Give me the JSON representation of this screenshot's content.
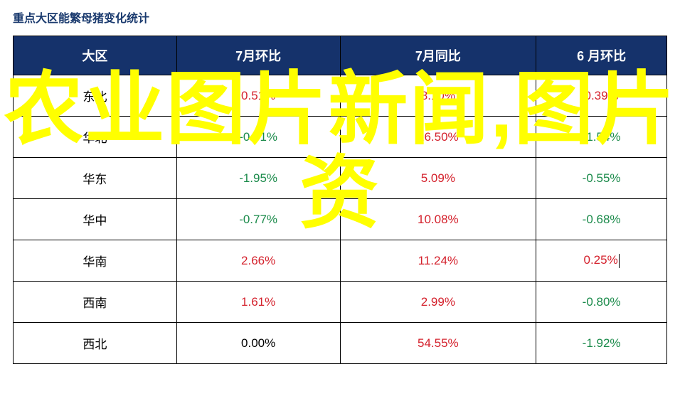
{
  "title": "重点大区能繁母猪变化统计",
  "colors": {
    "header_bg": "#15326b",
    "header_text": "#ffffff",
    "title_text": "#1a3a6e",
    "border": "#000000",
    "cell_bg": "#ffffff",
    "positive": "#d4212c",
    "negative": "#1a8a4a",
    "neutral": "#000000",
    "watermark": "#ffff00"
  },
  "typography": {
    "title_fontsize": 16,
    "header_fontsize": 18,
    "cell_fontsize": 17,
    "watermark_fontsize": 112,
    "watermark_weight": 900
  },
  "table": {
    "columns": [
      "大区",
      "7月环比",
      "7月同比",
      "6 月环比"
    ],
    "column_widths": [
      "25%",
      "25%",
      "30%",
      "20%"
    ],
    "rows": [
      {
        "region": "东北",
        "cells": [
          {
            "v": "0.51%",
            "s": "pos"
          },
          {
            "v": "8.10%",
            "s": "pos"
          },
          {
            "v": "0.39%",
            "s": "pos"
          }
        ]
      },
      {
        "region": "华北",
        "cells": [
          {
            "v": "-0.31%",
            "s": "neg"
          },
          {
            "v": "16.50%",
            "s": "pos"
          },
          {
            "v": "-1.54%",
            "s": "neg"
          }
        ]
      },
      {
        "region": "华东",
        "cells": [
          {
            "v": "-1.95%",
            "s": "neg"
          },
          {
            "v": "5.09%",
            "s": "pos"
          },
          {
            "v": "-0.55%",
            "s": "neg"
          }
        ]
      },
      {
        "region": "华中",
        "cells": [
          {
            "v": "-0.77%",
            "s": "neg"
          },
          {
            "v": "10.08%",
            "s": "pos"
          },
          {
            "v": "-0.68%",
            "s": "neg"
          }
        ]
      },
      {
        "region": "华南",
        "cells": [
          {
            "v": "2.66%",
            "s": "pos"
          },
          {
            "v": "11.24%",
            "s": "pos"
          },
          {
            "v": "0.25%",
            "s": "pos",
            "cursor": true
          }
        ]
      },
      {
        "region": "西南",
        "cells": [
          {
            "v": "1.61%",
            "s": "pos"
          },
          {
            "v": "2.99%",
            "s": "pos"
          },
          {
            "v": "-0.80%",
            "s": "neg"
          }
        ]
      },
      {
        "region": "西北",
        "cells": [
          {
            "v": "0.00%",
            "s": "neu"
          },
          {
            "v": "54.55%",
            "s": "pos"
          },
          {
            "v": "-1.92%",
            "s": "neg"
          }
        ]
      }
    ]
  },
  "watermark": {
    "line1": "农业图片新闻,图片",
    "line2": "资"
  }
}
